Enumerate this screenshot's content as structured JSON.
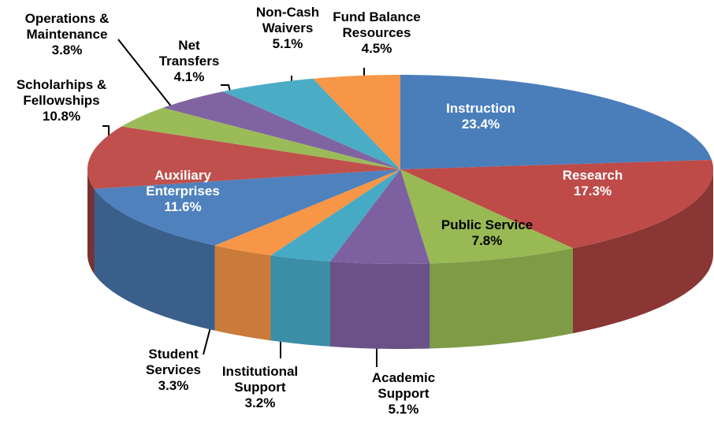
{
  "chart_data": {
    "type": "pie3d",
    "categories": [
      "Instruction",
      "Research",
      "Public Service",
      "Academic\nSupport",
      "Institutional\nSupport",
      "Student\nServices",
      "Auxiliary\nEnterprises",
      "Scholarhips &\nFellowships",
      "Operations &\nMaintenance",
      "Net\nTransfers",
      "Non-Cash\nWaivers",
      "Fund Balance\nResources"
    ],
    "values": [
      23.4,
      17.3,
      7.8,
      5.1,
      3.2,
      3.3,
      11.6,
      10.8,
      3.8,
      4.1,
      5.1,
      4.5
    ],
    "value_labels": [
      "23.4%",
      "17.3%",
      "7.8%",
      "5.1%",
      "3.2%",
      "3.3%",
      "11.6%",
      "10.8%",
      "3.8%",
      "4.1%",
      "5.1%",
      "4.5%"
    ],
    "colors": [
      "#4a7ebb",
      "#be4b48",
      "#98b954",
      "#7d60a0",
      "#46aac5",
      "#f79646",
      "#4f81bd",
      "#c0504d",
      "#9bbb59",
      "#8064a2",
      "#4bacc6",
      "#f79646"
    ]
  }
}
